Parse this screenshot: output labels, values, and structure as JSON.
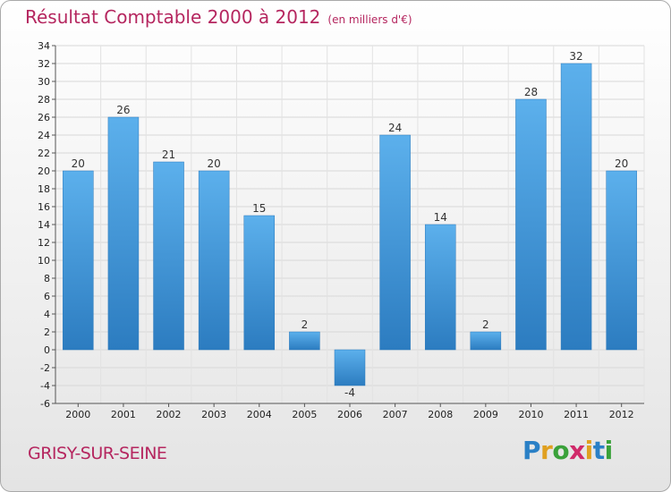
{
  "chart_data": {
    "type": "bar",
    "title": "Résultat Comptable 2000 à 2012",
    "subtitle": "(en milliers d'€)",
    "categories": [
      "2000",
      "2001",
      "2002",
      "2003",
      "2004",
      "2005",
      "2006",
      "2007",
      "2008",
      "2009",
      "2010",
      "2011",
      "2012"
    ],
    "values": [
      20,
      26,
      21,
      20,
      15,
      2,
      -4,
      24,
      14,
      2,
      28,
      32,
      20
    ],
    "ylim": [
      -6,
      34
    ],
    "yticks": [
      -6,
      -4,
      -2,
      0,
      2,
      4,
      6,
      8,
      10,
      12,
      14,
      16,
      18,
      20,
      22,
      24,
      26,
      28,
      30,
      32,
      34
    ],
    "grid": true,
    "bar_color": "#5aaeea"
  },
  "footer": {
    "commune": "GRISY-SUR-SEINE",
    "logo_letters": [
      "P",
      "r",
      "o",
      "x",
      "i",
      "t",
      "i"
    ],
    "logo_colors": [
      "#2a80c6",
      "#e0a020",
      "#3aa13a",
      "#d02a6a",
      "#e0a020",
      "#2a80c6",
      "#3aa13a"
    ]
  }
}
